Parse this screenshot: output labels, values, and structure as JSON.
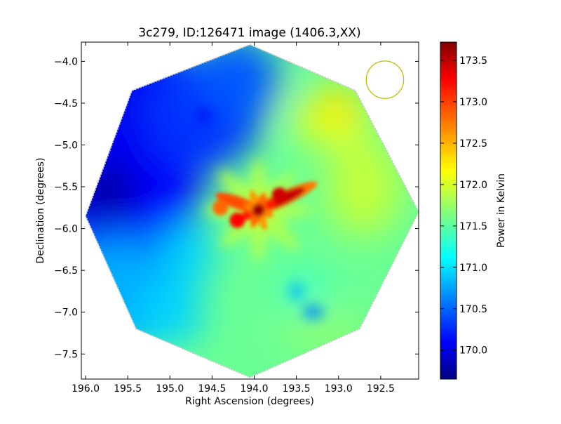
{
  "chart_data": {
    "type": "heatmap",
    "title": "3c279, ID:126471 image (1406.3,XX)",
    "xlabel": "Right Ascension (degrees)",
    "ylabel": "Declination (degrees)",
    "xlim": [
      196.05,
      192.05
    ],
    "ylim": [
      -7.8,
      -3.77
    ],
    "x_ticks": [
      196.0,
      195.5,
      195.0,
      194.5,
      194.0,
      193.5,
      193.0,
      192.5
    ],
    "x_tick_labels": [
      "196.0",
      "195.5",
      "195.0",
      "194.5",
      "194.0",
      "193.5",
      "193.0",
      "192.5"
    ],
    "y_ticks": [
      -4.0,
      -4.5,
      -5.0,
      -5.5,
      -6.0,
      -6.5,
      -7.0,
      -7.5
    ],
    "y_tick_labels": [
      "−4.0",
      "−4.5",
      "−5.0",
      "−5.5",
      "−6.0",
      "−6.5",
      "−7.0",
      "−7.5"
    ],
    "colorbar": {
      "label": "Power in Kelvin",
      "range": [
        169.65,
        173.72
      ],
      "ticks": [
        170.0,
        170.5,
        171.0,
        171.5,
        172.0,
        172.5,
        173.0,
        173.5
      ],
      "tick_labels": [
        "170.0",
        "170.5",
        "171.0",
        "171.5",
        "172.0",
        "172.5",
        "173.0",
        "173.5"
      ],
      "colormap": "jet"
    },
    "field_boundary_octagon": [
      [
        194.05,
        -3.8
      ],
      [
        192.8,
        -4.35
      ],
      [
        192.05,
        -5.8
      ],
      [
        192.75,
        -7.2
      ],
      [
        194.05,
        -7.78
      ],
      [
        195.4,
        -7.2
      ],
      [
        196.0,
        -5.85
      ],
      [
        195.45,
        -4.35
      ]
    ],
    "beam_circle": {
      "ra": 192.45,
      "dec": -4.22,
      "radius_deg": 0.37,
      "color": "#bfbf00"
    },
    "hotspots": [
      {
        "ra": 193.7,
        "dec": -5.6,
        "value": 173.4
      },
      {
        "ra": 194.2,
        "dec": -5.9,
        "value": 173.2
      },
      {
        "ra": 194.4,
        "dec": -5.75,
        "value": 172.8
      },
      {
        "ra": 195.75,
        "dec": -5.5,
        "value": 169.8
      },
      {
        "ra": 195.2,
        "dec": -4.6,
        "value": 170.0
      }
    ]
  }
}
